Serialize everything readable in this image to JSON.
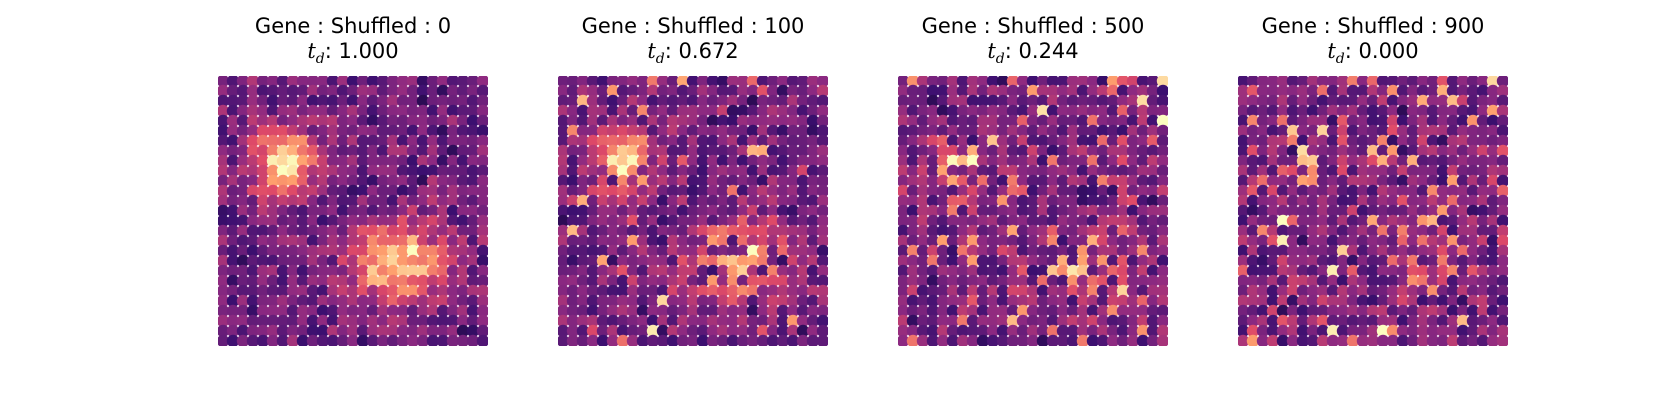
{
  "chart_data": [
    {
      "type": "heatmap",
      "title": "Gene : Shuffled : 0",
      "metric_value": "1.000",
      "shuffle_count": 0,
      "colormap": "magma",
      "grid": [
        27,
        27
      ],
      "pattern": "two bright clusters: upper-left blob and larger lower-right blob"
    },
    {
      "type": "heatmap",
      "title": "Gene : Shuffled : 100",
      "metric_value": "0.672",
      "shuffle_count": 100,
      "colormap": "magma",
      "grid": [
        27,
        27
      ],
      "pattern": "two bright clusters with some scattered bright spots"
    },
    {
      "type": "heatmap",
      "title": "Gene : Shuffled : 500",
      "metric_value": "0.244",
      "shuffle_count": 500,
      "colormap": "magma",
      "grid": [
        27,
        27
      ],
      "pattern": "clusters mostly dissolved into noise"
    },
    {
      "type": "heatmap",
      "title": "Gene : Shuffled : 900",
      "metric_value": "0.000",
      "shuffle_count": 900,
      "colormap": "magma",
      "grid": [
        27,
        27
      ],
      "pattern": "fully random noise"
    }
  ],
  "metric_label": "t",
  "metric_subscript": "d",
  "colors": {
    "magma_stops": [
      "#000004",
      "#3b0f70",
      "#8c2981",
      "#de4968",
      "#fe9f6d",
      "#fcfdbf"
    ]
  }
}
